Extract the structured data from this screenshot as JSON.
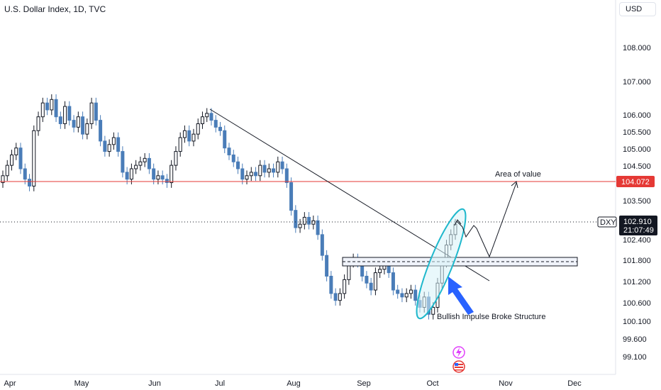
{
  "header": {
    "title": "U.S. Dollar Index, 1D, TVC",
    "currency": "USD"
  },
  "colors": {
    "up": "#131722",
    "down": "#4a7db8",
    "area_line": "#e53935",
    "ellipse": "#1fb8cc",
    "ellipse_fill": "#d7f3f7",
    "arrow": "#2962ff"
  },
  "chart_data": {
    "type": "candlestick",
    "y_ticks": [
      "108.000",
      "107.000",
      "106.000",
      "105.500",
      "105.000",
      "104.500",
      "103.500",
      "102.400",
      "101.800",
      "101.200",
      "100.600",
      "100.100",
      "99.600",
      "99.100"
    ],
    "x_ticks": [
      "Apr",
      "May",
      "Jun",
      "Jul",
      "Aug",
      "Sep",
      "Oct",
      "Nov",
      "Dec"
    ],
    "symbol": "DXY",
    "last_price": "102.910",
    "countdown": "21:07:49",
    "area_of_value_price": "104.072",
    "annotations": {
      "area_of_value": "Area of value",
      "impulse": "Bullish Impulse Broke Structure"
    },
    "close_series": [
      104.3,
      104.6,
      104.9,
      105.1,
      104.5,
      104.2,
      104.0,
      105.6,
      106.0,
      106.4,
      106.2,
      106.5,
      106.0,
      105.8,
      106.3,
      105.9,
      105.7,
      106.0,
      105.5,
      105.8,
      106.4,
      105.9,
      105.3,
      105.0,
      105.2,
      105.4,
      105.0,
      104.4,
      104.2,
      104.5,
      104.6,
      104.7,
      104.8,
      104.5,
      104.2,
      104.3,
      104.2,
      104.1,
      104.6,
      105.0,
      105.4,
      105.6,
      105.3,
      105.5,
      105.8,
      106.0,
      106.1,
      105.9,
      105.7,
      105.6,
      105.1,
      104.9,
      104.7,
      104.5,
      104.2,
      104.3,
      104.4,
      104.3,
      104.6,
      104.4,
      104.5,
      104.4,
      104.7,
      104.5,
      104.1,
      103.3,
      102.8,
      102.9,
      103.1,
      102.9,
      103.0,
      102.6,
      102.0,
      101.4,
      100.9,
      100.7,
      100.9,
      101.3,
      101.8,
      101.9,
      101.8,
      101.4,
      101.2,
      101.0,
      101.5,
      101.6,
      101.7,
      101.5,
      101.0,
      100.9,
      100.8,
      100.9,
      101.0,
      100.7,
      100.5,
      100.8,
      100.3,
      100.5,
      101.2,
      101.8,
      102.3,
      102.6,
      102.9
    ]
  },
  "indicators": {
    "lightning": "lightning-icon",
    "flag": "us-flag-icon"
  }
}
